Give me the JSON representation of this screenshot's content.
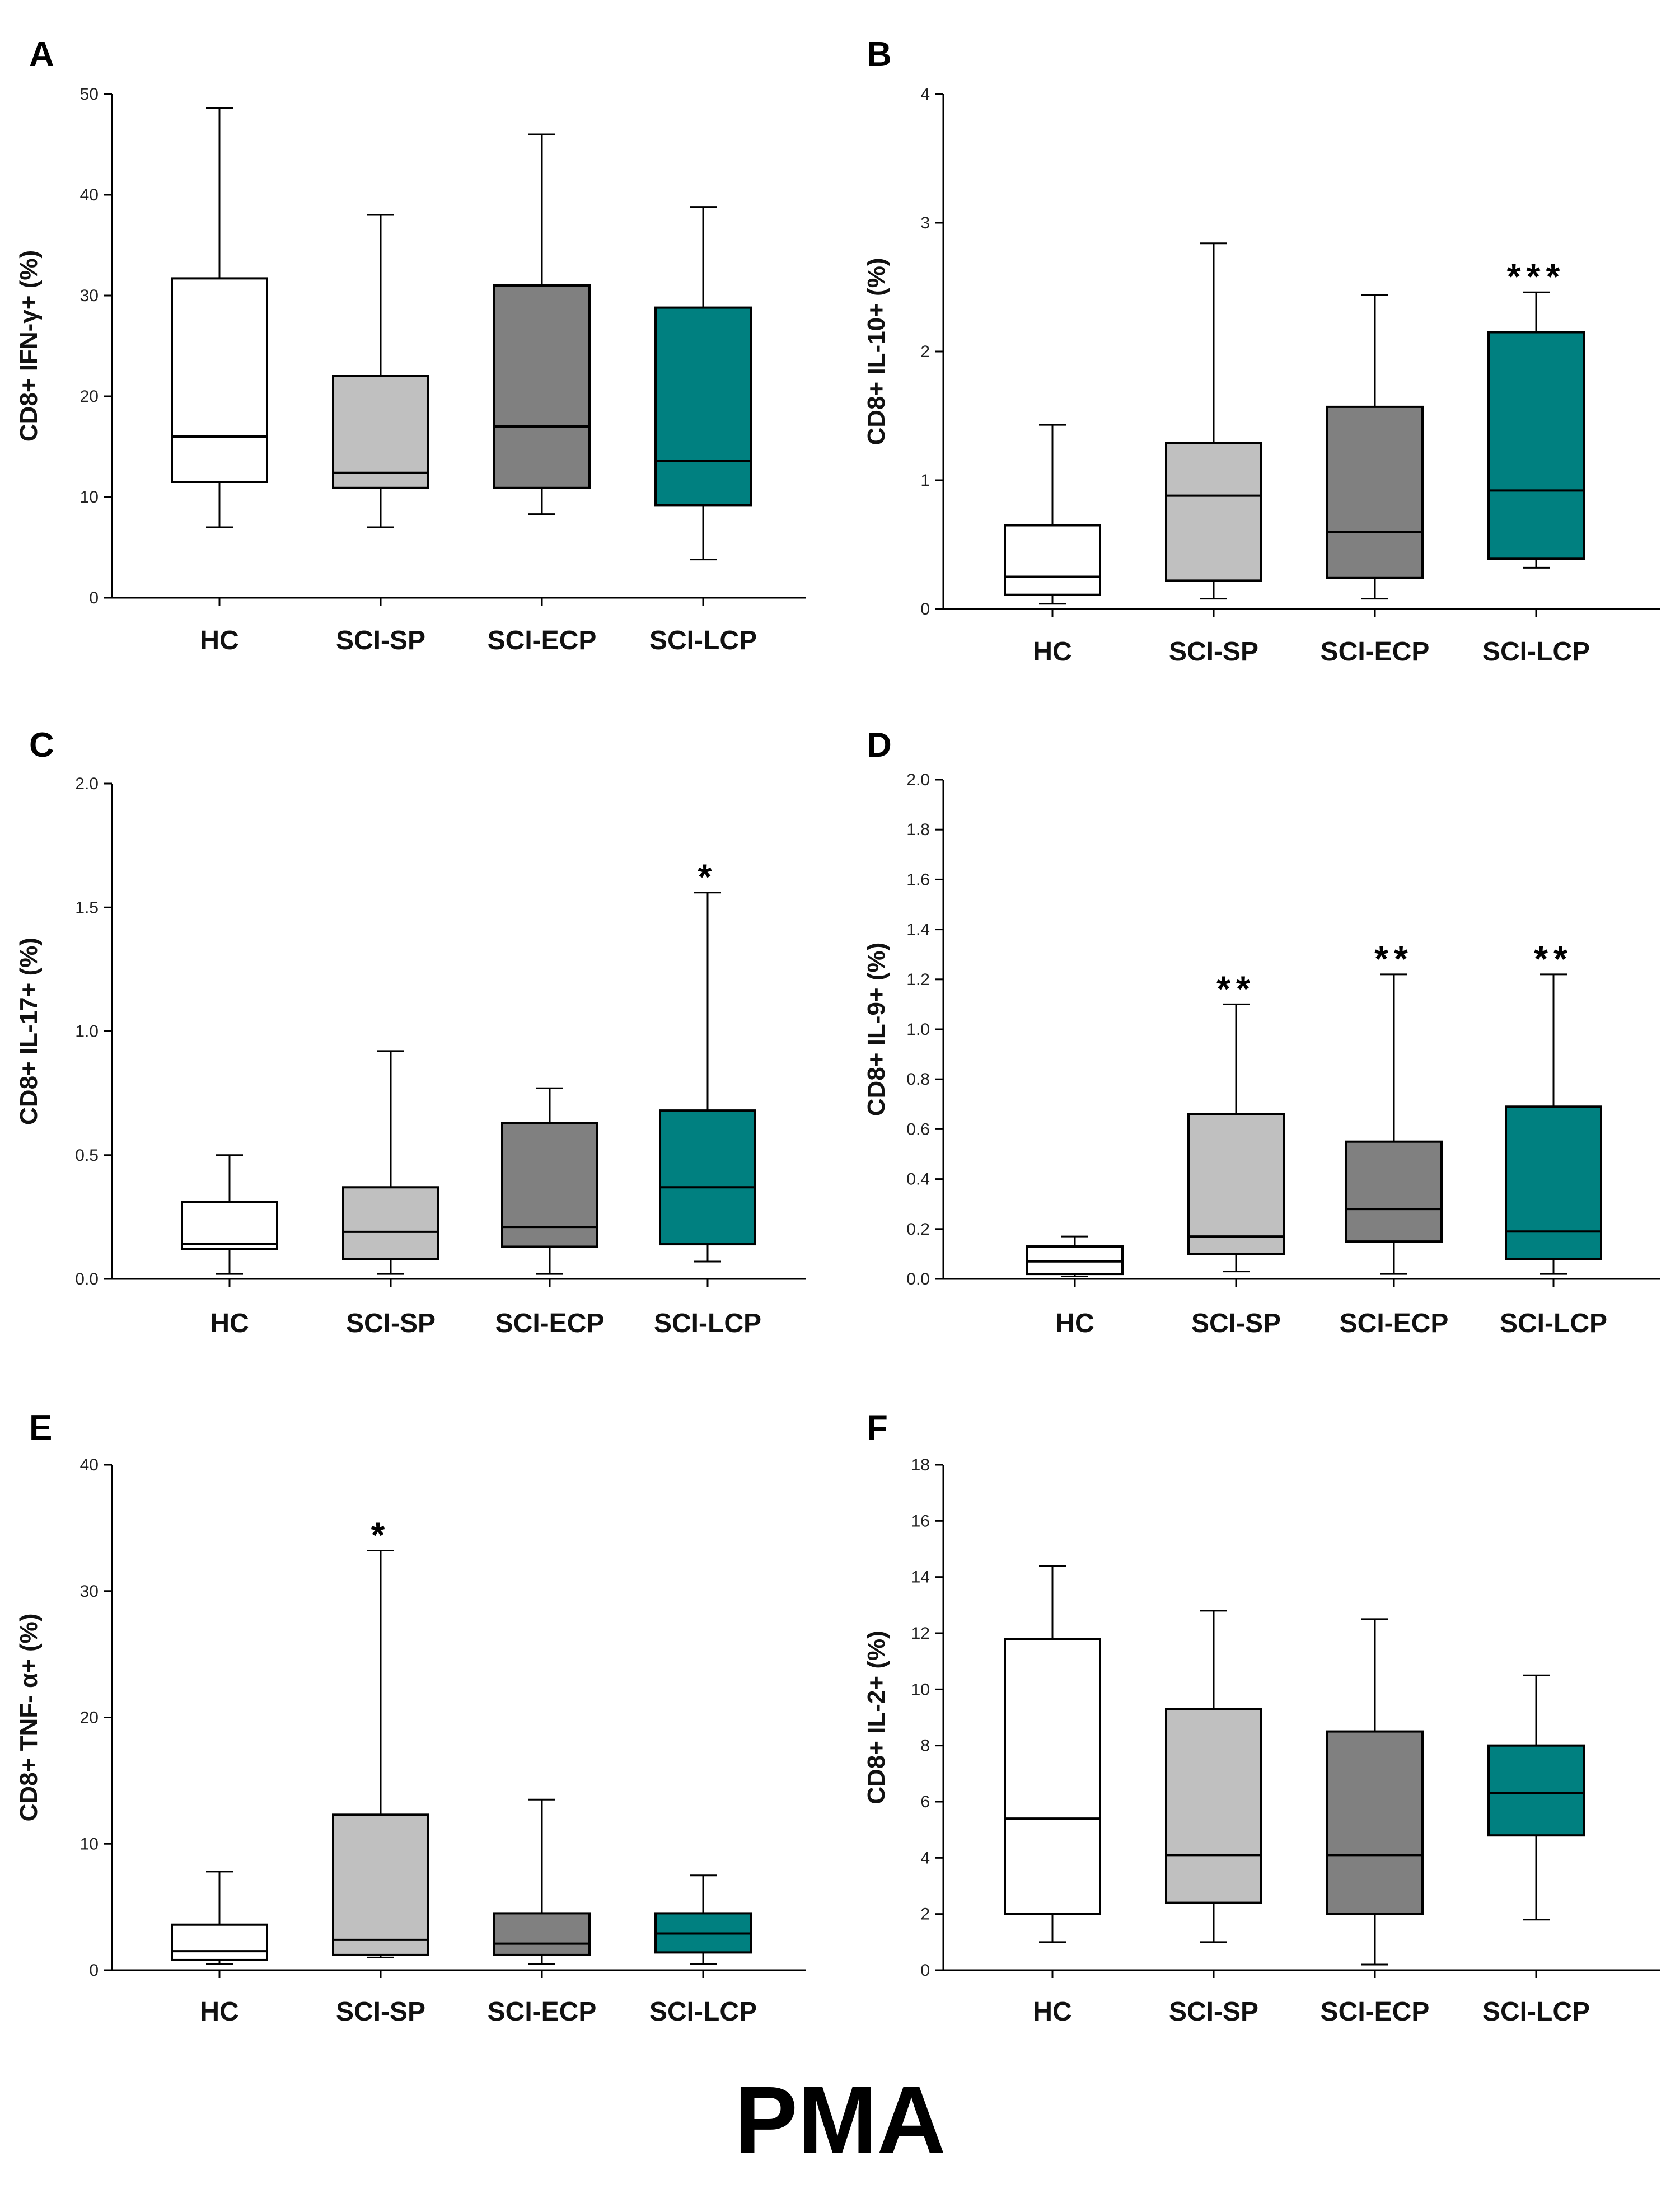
{
  "figure_label": "PMA",
  "colors": {
    "HC": "#ffffff",
    "SCI-SP": "#c0c0c0",
    "SCI-ECP": "#808080",
    "SCI-LCP": "#008080",
    "stroke": "#000000"
  },
  "chart_data": [
    {
      "panel": "A",
      "type": "box",
      "ylabel": "CD8+ IFN-γ+ (%)",
      "ylim": [
        0,
        50
      ],
      "yticks": [
        0,
        10,
        20,
        30,
        40,
        50
      ],
      "ytick_labels": [
        "0",
        "10",
        "20",
        "30",
        "40",
        "50"
      ],
      "categories": [
        "HC",
        "SCI-SP",
        "SCI-ECP",
        "SCI-LCP"
      ],
      "boxes": [
        {
          "min": 7,
          "q1": 11.5,
          "median": 16,
          "q3": 31.7,
          "max": 48.6,
          "sig": ""
        },
        {
          "min": 7,
          "q1": 10.9,
          "median": 12.4,
          "q3": 22,
          "max": 38,
          "sig": ""
        },
        {
          "min": 8.3,
          "q1": 10.9,
          "median": 17,
          "q3": 31,
          "max": 46,
          "sig": ""
        },
        {
          "min": 3.8,
          "q1": 9.2,
          "median": 13.6,
          "q3": 28.8,
          "max": 38.8,
          "sig": ""
        }
      ]
    },
    {
      "panel": "B",
      "type": "box",
      "ylabel": "CD8+ IL-10+ (%)",
      "ylim": [
        0,
        4
      ],
      "yticks": [
        0,
        1,
        2,
        3,
        4
      ],
      "ytick_labels": [
        "0",
        "1",
        "2",
        "3",
        "4"
      ],
      "categories": [
        "HC",
        "SCI-SP",
        "SCI-ECP",
        "SCI-LCP"
      ],
      "boxes": [
        {
          "min": 0.04,
          "q1": 0.11,
          "median": 0.25,
          "q3": 0.65,
          "max": 1.43,
          "sig": ""
        },
        {
          "min": 0.08,
          "q1": 0.22,
          "median": 0.88,
          "q3": 1.29,
          "max": 2.84,
          "sig": ""
        },
        {
          "min": 0.08,
          "q1": 0.24,
          "median": 0.6,
          "q3": 1.57,
          "max": 2.44,
          "sig": ""
        },
        {
          "min": 0.32,
          "q1": 0.39,
          "median": 0.92,
          "q3": 2.15,
          "max": 2.46,
          "sig": "***"
        }
      ]
    },
    {
      "panel": "C",
      "type": "box",
      "ylabel": "CD8+ IL-17+ (%)",
      "ylim": [
        0,
        2
      ],
      "yticks": [
        0,
        0.5,
        1,
        1.5,
        2
      ],
      "ytick_labels": [
        "0.0",
        "0.5",
        "1.0",
        "1.5",
        "2.0"
      ],
      "categories": [
        "HC",
        "SCI-SP",
        "SCI-ECP",
        "SCI-LCP"
      ],
      "boxes": [
        {
          "min": 0.02,
          "q1": 0.12,
          "median": 0.14,
          "q3": 0.31,
          "max": 0.5,
          "sig": ""
        },
        {
          "min": 0.02,
          "q1": 0.08,
          "median": 0.19,
          "q3": 0.37,
          "max": 0.92,
          "sig": ""
        },
        {
          "min": 0.02,
          "q1": 0.13,
          "median": 0.21,
          "q3": 0.63,
          "max": 0.77,
          "sig": ""
        },
        {
          "min": 0.07,
          "q1": 0.14,
          "median": 0.37,
          "q3": 0.68,
          "max": 1.56,
          "sig": "*"
        }
      ]
    },
    {
      "panel": "D",
      "type": "box",
      "ylabel": "CD8+ IL-9+ (%)",
      "ylim": [
        0,
        2
      ],
      "yticks": [
        0,
        0.2,
        0.4,
        0.6,
        0.8,
        1,
        1.2,
        1.4,
        1.6,
        1.8,
        2
      ],
      "ytick_labels": [
        "0.0",
        "0.2",
        "0.4",
        "0.6",
        "0.8",
        "1.0",
        "1.2",
        "1.4",
        "1.6",
        "1.8",
        "2.0"
      ],
      "categories": [
        "HC",
        "SCI-SP",
        "SCI-ECP",
        "SCI-LCP"
      ],
      "boxes": [
        {
          "min": 0.01,
          "q1": 0.02,
          "median": 0.07,
          "q3": 0.13,
          "max": 0.17,
          "sig": ""
        },
        {
          "min": 0.03,
          "q1": 0.1,
          "median": 0.17,
          "q3": 0.66,
          "max": 1.1,
          "sig": "**"
        },
        {
          "min": 0.02,
          "q1": 0.15,
          "median": 0.28,
          "q3": 0.55,
          "max": 1.22,
          "sig": "**"
        },
        {
          "min": 0.02,
          "q1": 0.08,
          "median": 0.19,
          "q3": 0.69,
          "max": 1.22,
          "sig": "**"
        }
      ]
    },
    {
      "panel": "E",
      "type": "box",
      "ylabel": "CD8+ TNF- α+ (%)",
      "ylim": [
        0,
        40
      ],
      "yticks": [
        0,
        10,
        20,
        30,
        40
      ],
      "ytick_labels": [
        "0",
        "10",
        "20",
        "30",
        "40"
      ],
      "categories": [
        "HC",
        "SCI-SP",
        "SCI-ECP",
        "SCI-LCP"
      ],
      "boxes": [
        {
          "min": 0.5,
          "q1": 0.8,
          "median": 1.5,
          "q3": 3.6,
          "max": 7.8,
          "sig": ""
        },
        {
          "min": 1,
          "q1": 1.2,
          "median": 2.4,
          "q3": 12.3,
          "max": 33.2,
          "sig": "*"
        },
        {
          "min": 0.5,
          "q1": 1.2,
          "median": 2.1,
          "q3": 4.5,
          "max": 13.5,
          "sig": ""
        },
        {
          "min": 0.5,
          "q1": 1.4,
          "median": 2.9,
          "q3": 4.5,
          "max": 7.5,
          "sig": ""
        }
      ]
    },
    {
      "panel": "F",
      "type": "box",
      "ylabel": "CD8+ IL-2+ (%)",
      "ylim": [
        0,
        18
      ],
      "yticks": [
        0,
        2,
        4,
        6,
        8,
        10,
        12,
        14,
        16,
        18
      ],
      "ytick_labels": [
        "0",
        "2",
        "4",
        "6",
        "8",
        "10",
        "12",
        "14",
        "16",
        "18"
      ],
      "categories": [
        "HC",
        "SCI-SP",
        "SCI-ECP",
        "SCI-LCP"
      ],
      "boxes": [
        {
          "min": 1,
          "q1": 2,
          "median": 5.4,
          "q3": 11.8,
          "max": 14.4,
          "sig": ""
        },
        {
          "min": 1,
          "q1": 2.4,
          "median": 4.1,
          "q3": 9.3,
          "max": 12.8,
          "sig": ""
        },
        {
          "min": 0.2,
          "q1": 2,
          "median": 4.1,
          "q3": 8.5,
          "max": 12.5,
          "sig": ""
        },
        {
          "min": 1.8,
          "q1": 4.8,
          "median": 6.3,
          "q3": 8,
          "max": 10.5,
          "sig": ""
        }
      ]
    }
  ]
}
